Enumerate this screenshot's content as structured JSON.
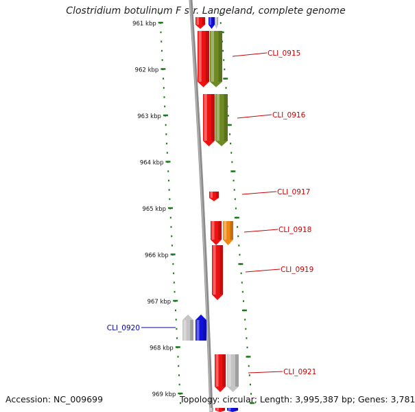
{
  "title": "Clostridium botulinum F str. Langeland, complete genome",
  "footer": {
    "accession": "Accession: NC_009699",
    "topology": "Topology: circular; Length: 3,995,387 bp; Genes: 3,781"
  },
  "colors": {
    "tick": "#1a7a1a",
    "backbone": "#8c8c8c",
    "red": "#ee1111",
    "olive": "#6f8a22",
    "orange": "#ee8811",
    "blue": "#1111dd",
    "gray": "#c4c4c4",
    "label_red": "#cc0000",
    "label_blue": "#0000aa"
  },
  "kbp_labels": [
    "961 kbp",
    "962 kbp",
    "963 kbp",
    "964 kbp",
    "965 kbp",
    "966 kbp",
    "967 kbp",
    "968 kbp",
    "969 kbp"
  ],
  "gene_labels": [
    {
      "id": "CLI_0915",
      "color": "red"
    },
    {
      "id": "CLI_0916",
      "color": "red"
    },
    {
      "id": "CLI_0917",
      "color": "red"
    },
    {
      "id": "CLI_0918",
      "color": "red"
    },
    {
      "id": "CLI_0919",
      "color": "red"
    },
    {
      "id": "CLI_0920",
      "color": "blue"
    },
    {
      "id": "CLI_0921",
      "color": "red"
    }
  ]
}
